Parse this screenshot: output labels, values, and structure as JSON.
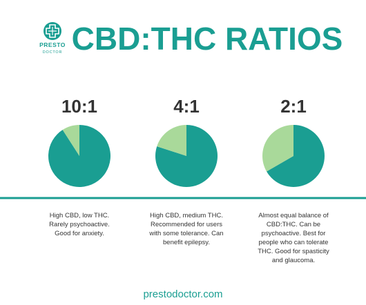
{
  "header": {
    "title": "CBD:THC RATIOS",
    "logo": {
      "line1": "PRESTO",
      "line2": "DOCTOR"
    }
  },
  "chart_data": [
    {
      "type": "pie",
      "title": "10:1",
      "values": [
        10,
        1
      ],
      "colors": [
        "#1a9e92",
        "#a9d99a"
      ]
    },
    {
      "type": "pie",
      "title": "4:1",
      "values": [
        4,
        1
      ],
      "colors": [
        "#1a9e92",
        "#a9d99a"
      ]
    },
    {
      "type": "pie",
      "title": "2:1",
      "values": [
        2,
        1
      ],
      "colors": [
        "#1a9e92",
        "#a9d99a"
      ]
    }
  ],
  "descriptions": [
    "High CBD, low THC. Rarely psychoactive. Good for anxiety.",
    "High CBD, medium THC. Recommended for users with some tolerance. Can benefit epilepsy.",
    "Almost equal balance of CBD:THC. Can be psychoactive. Best for people who can tolerate THC. Good for spasticity and glaucoma."
  ],
  "footer": "prestodoctor.com"
}
